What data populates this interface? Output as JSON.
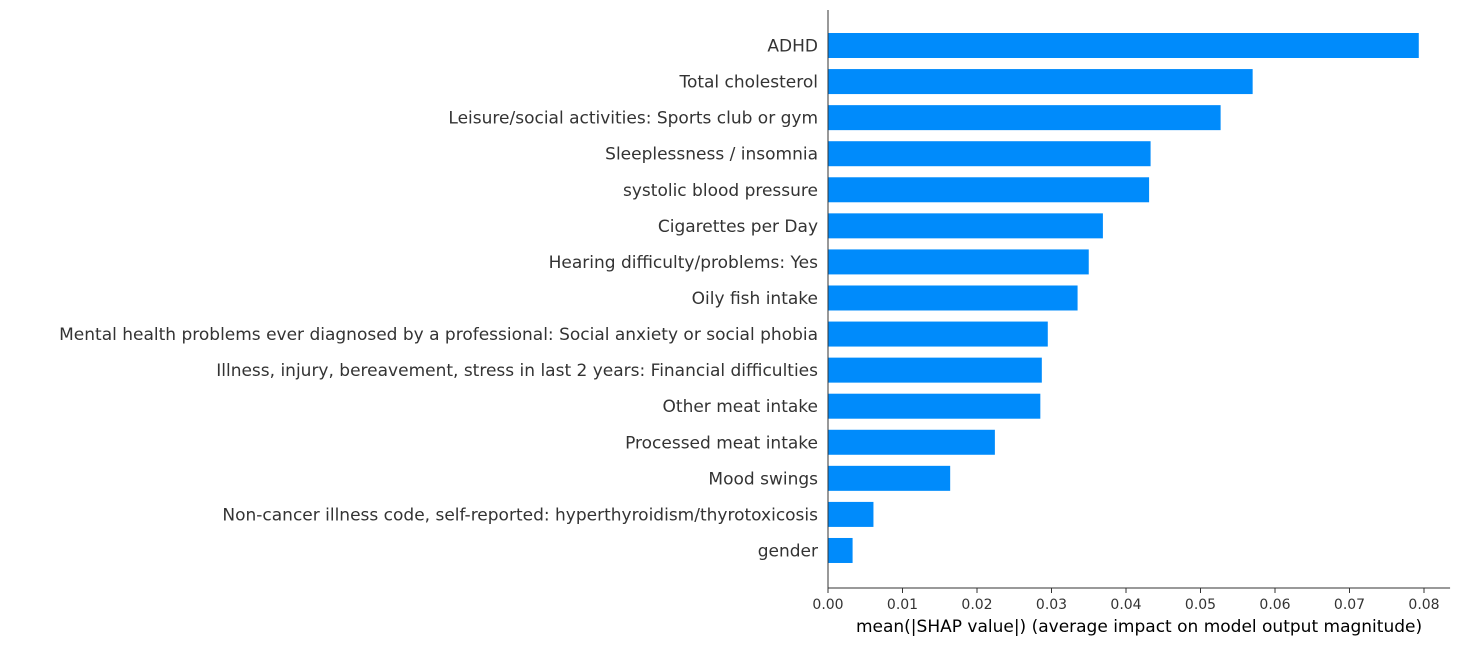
{
  "chart_data": {
    "type": "bar",
    "orientation": "horizontal",
    "categories": [
      "ADHD",
      "Total cholesterol",
      "Leisure/social activities: Sports club or gym",
      "Sleeplessness / insomnia",
      "systolic blood pressure",
      "Cigarettes per Day",
      "Hearing difficulty/problems: Yes",
      "Oily fish intake",
      "Mental health problems ever diagnosed by a professional: Social anxiety or social phobia",
      "Illness, injury, bereavement, stress in last 2 years: Financial difficulties",
      "Other meat intake",
      "Processed meat intake",
      "Mood swings",
      "Non-cancer illness code, self-reported: hyperthyroidism/thyrotoxicosis",
      "gender"
    ],
    "values": [
      0.0793,
      0.057,
      0.0527,
      0.0433,
      0.0431,
      0.0369,
      0.035,
      0.0335,
      0.0295,
      0.0287,
      0.0285,
      0.0224,
      0.0164,
      0.0061,
      0.0033
    ],
    "xticks": [
      "0.00",
      "0.01",
      "0.02",
      "0.03",
      "0.04",
      "0.05",
      "0.06",
      "0.07",
      "0.08"
    ],
    "xtick_values": [
      0,
      0.01,
      0.02,
      0.03,
      0.04,
      0.05,
      0.06,
      0.07,
      0.08
    ],
    "xlim": [
      0,
      0.0835
    ],
    "xlabel": "mean(|SHAP value|) (average impact on model output magnitude)",
    "ylabel": "",
    "title": "",
    "grid": false,
    "legend": "none",
    "bar_color": "#008bfb",
    "axis_color": "#333333"
  }
}
